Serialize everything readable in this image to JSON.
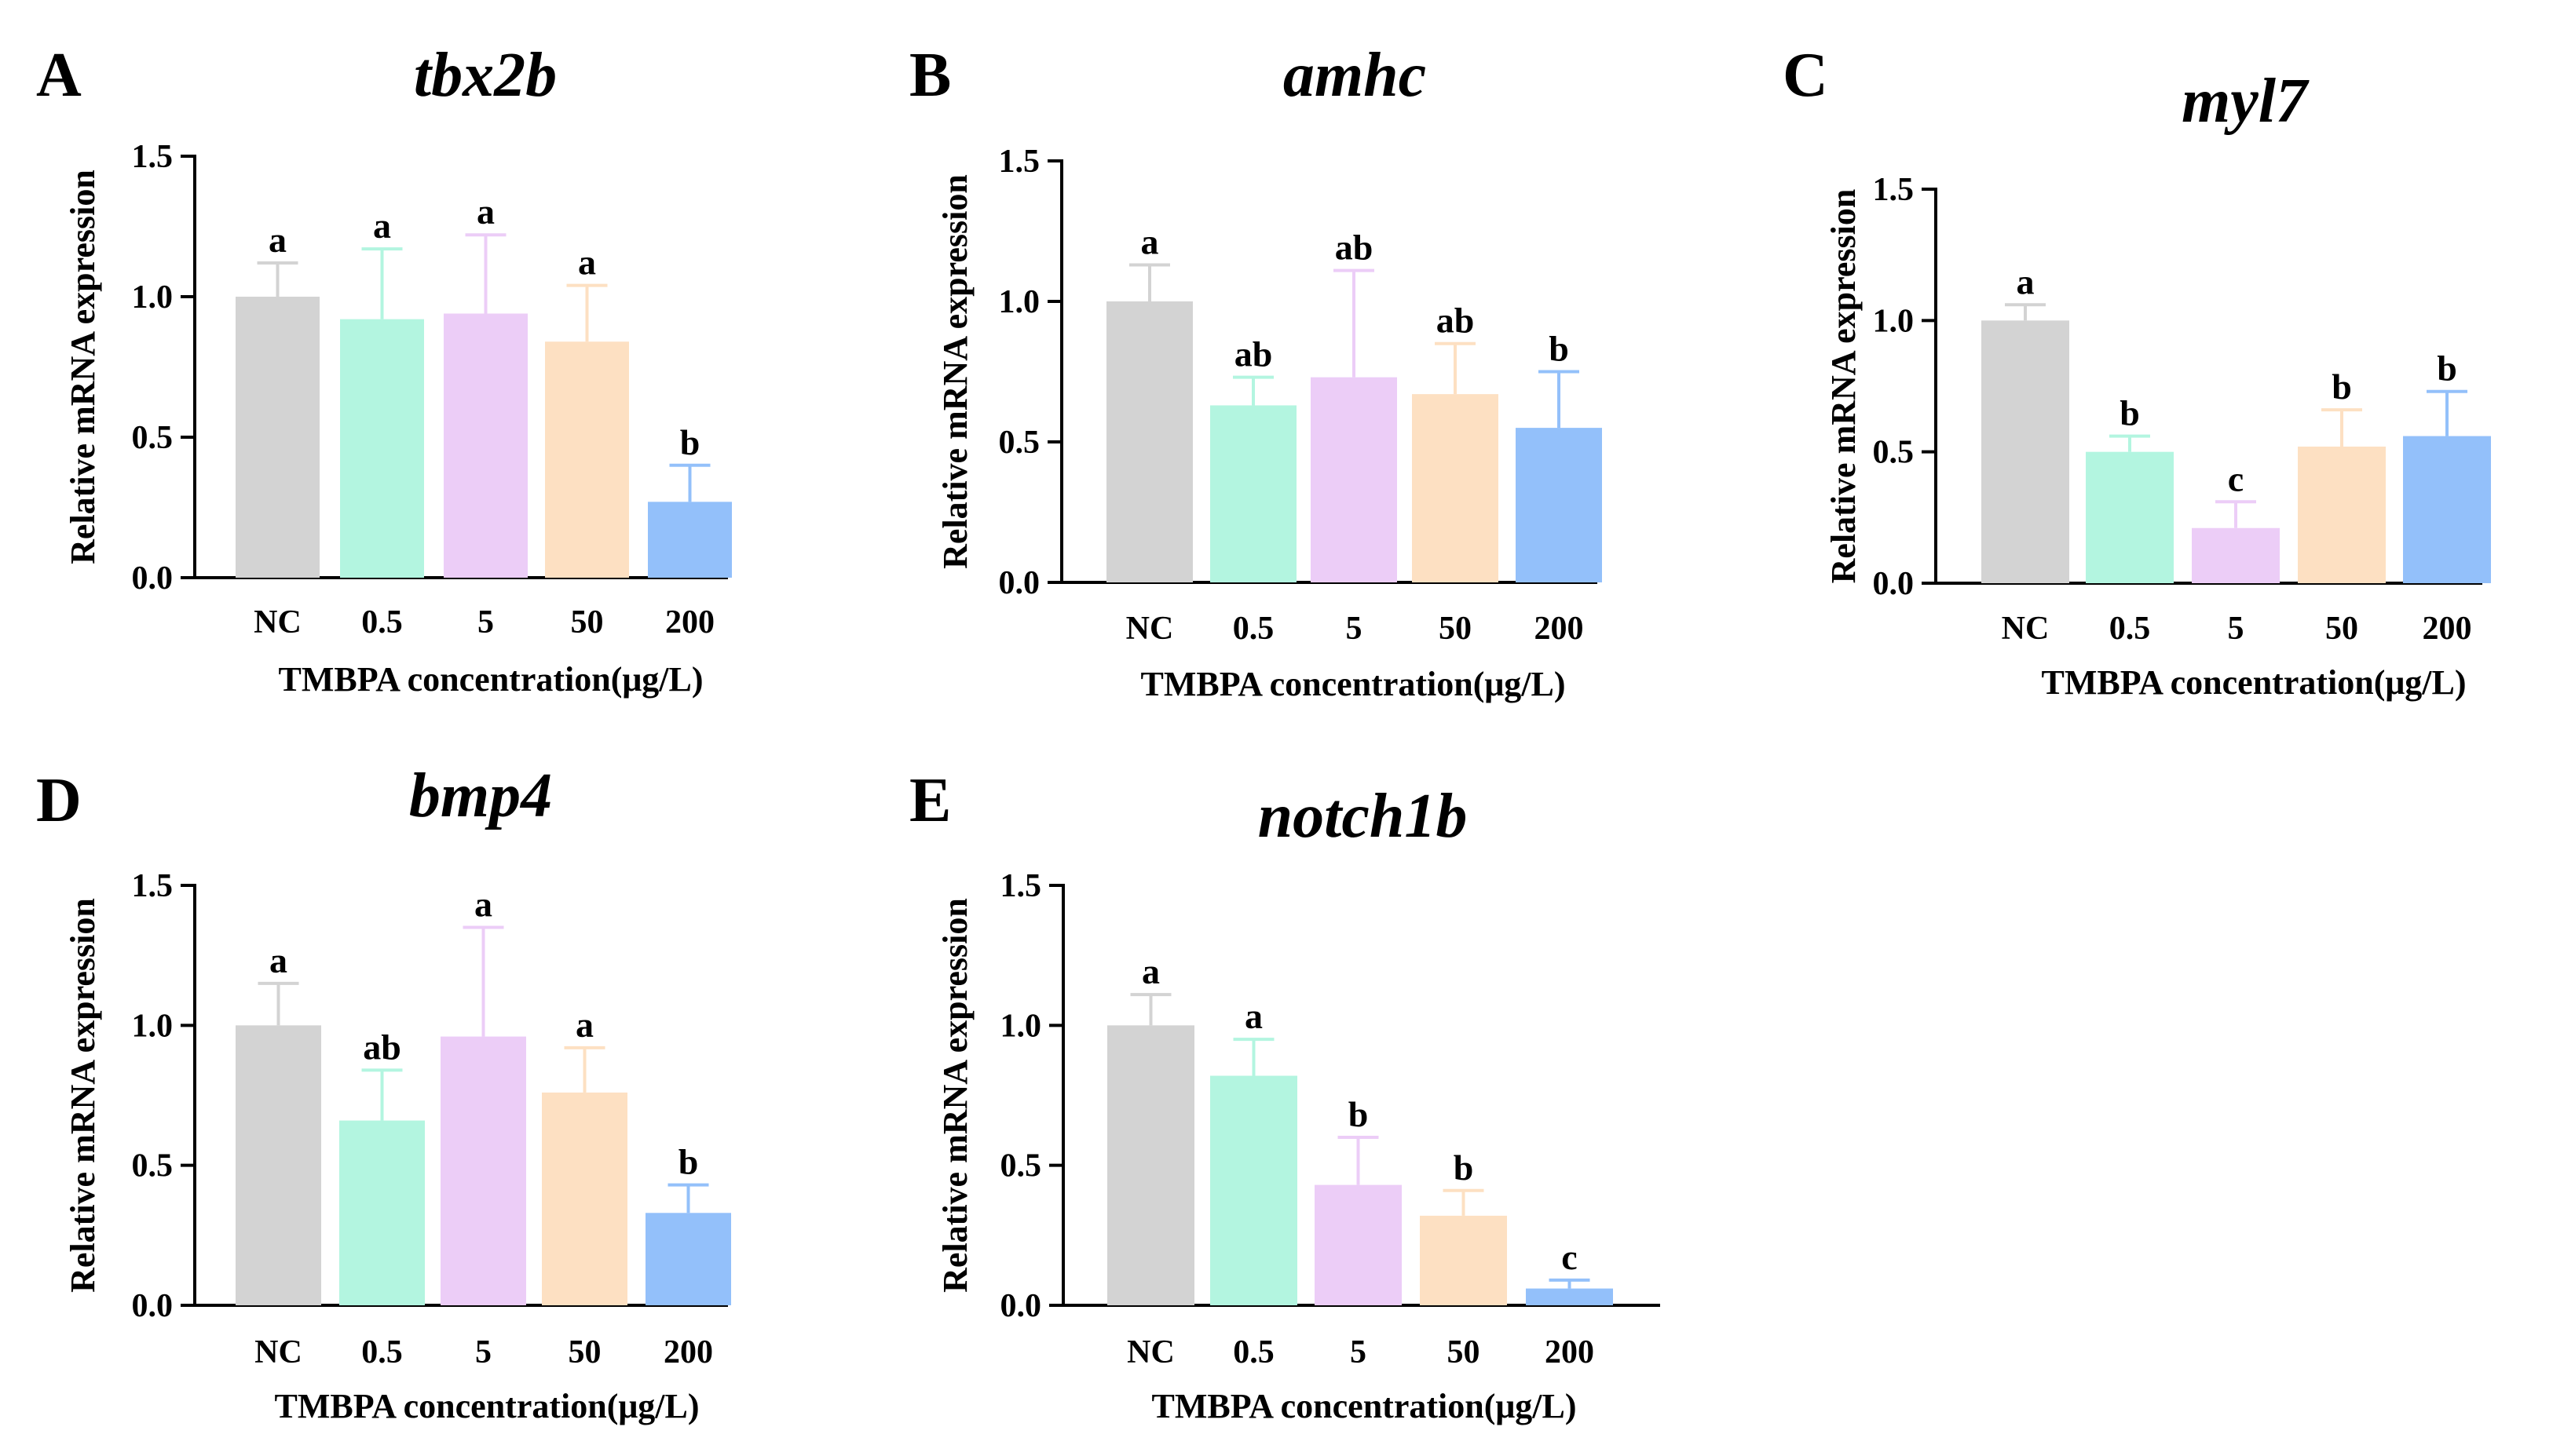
{
  "colors": {
    "NC": "#d3d3d3",
    "0.5": "#b3f5e0",
    "5": "#eccdf7",
    "50": "#fde0c2",
    "200": "#93c0fa",
    "axis": "#000000"
  },
  "chart_data": [
    {
      "type": "bar",
      "panel": "A",
      "title": "tbx2b",
      "categories": [
        "NC",
        "0.5",
        "5",
        "50",
        "200"
      ],
      "values": [
        1.0,
        0.92,
        0.94,
        0.84,
        0.27
      ],
      "errors": [
        0.12,
        0.25,
        0.28,
        0.2,
        0.13
      ],
      "significance": [
        "a",
        "a",
        "a",
        "a",
        "b"
      ],
      "xlabel": "TMBPA concentration(μg/L)",
      "ylabel": "Relative mRNA expression",
      "ylim": [
        0,
        1.5
      ],
      "yticks": [
        "0.0",
        "0.5",
        "1.0",
        "1.5"
      ]
    },
    {
      "type": "bar",
      "panel": "B",
      "title": "amhc",
      "categories": [
        "NC",
        "0.5",
        "5",
        "50",
        "200"
      ],
      "values": [
        1.0,
        0.63,
        0.73,
        0.67,
        0.55
      ],
      "errors": [
        0.13,
        0.1,
        0.38,
        0.18,
        0.2
      ],
      "significance": [
        "a",
        "ab",
        "ab",
        "ab",
        "b"
      ],
      "xlabel": "TMBPA concentration(μg/L)",
      "ylabel": "Relative mRNA expression",
      "ylim": [
        0,
        1.5
      ],
      "yticks": [
        "0.0",
        "0.5",
        "1.0",
        "1.5"
      ]
    },
    {
      "type": "bar",
      "panel": "C",
      "title": "myl7",
      "categories": [
        "NC",
        "0.5",
        "5",
        "50",
        "200"
      ],
      "values": [
        1.0,
        0.5,
        0.21,
        0.52,
        0.56
      ],
      "errors": [
        0.06,
        0.06,
        0.1,
        0.14,
        0.17
      ],
      "significance": [
        "a",
        "b",
        "c",
        "b",
        "b"
      ],
      "xlabel": "TMBPA concentration(μg/L)",
      "ylabel": "Relative mRNA expression",
      "ylim": [
        0,
        1.5
      ],
      "yticks": [
        "0.0",
        "0.5",
        "1.0",
        "1.5"
      ]
    },
    {
      "type": "bar",
      "panel": "D",
      "title": "bmp4",
      "categories": [
        "NC",
        "0.5",
        "5",
        "50",
        "200"
      ],
      "values": [
        1.0,
        0.66,
        0.96,
        0.76,
        0.33
      ],
      "errors": [
        0.15,
        0.18,
        0.39,
        0.16,
        0.1
      ],
      "significance": [
        "a",
        "ab",
        "a",
        "a",
        "b"
      ],
      "xlabel": "TMBPA concentration(μg/L)",
      "ylabel": "Relative mRNA expression",
      "ylim": [
        0,
        1.5
      ],
      "yticks": [
        "0.0",
        "0.5",
        "1.0",
        "1.5"
      ]
    },
    {
      "type": "bar",
      "panel": "E",
      "title": "notch1b",
      "categories": [
        "NC",
        "0.5",
        "5",
        "50",
        "200"
      ],
      "values": [
        1.0,
        0.82,
        0.43,
        0.32,
        0.06
      ],
      "errors": [
        0.11,
        0.13,
        0.17,
        0.09,
        0.03
      ],
      "significance": [
        "a",
        "a",
        "b",
        "b",
        "c"
      ],
      "xlabel": "TMBPA concentration(μg/L)",
      "ylabel": "Relative mRNA expression",
      "ylim": [
        0,
        1.5
      ],
      "yticks": [
        "0.0",
        "0.5",
        "1.0",
        "1.5"
      ]
    }
  ]
}
